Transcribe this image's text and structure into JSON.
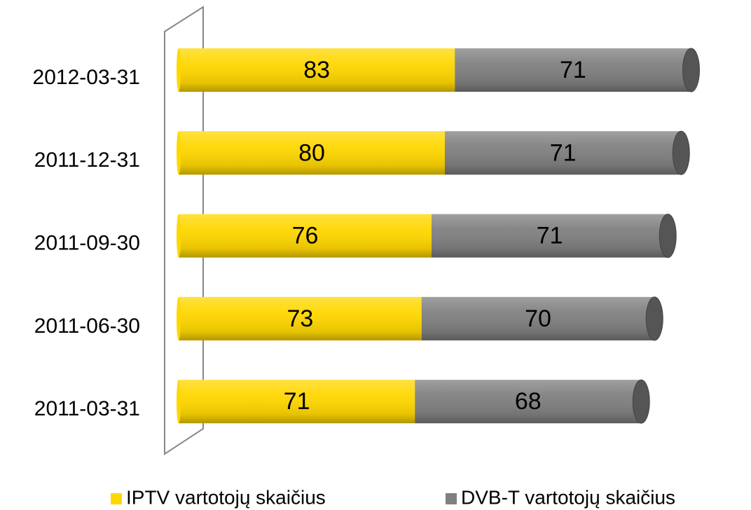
{
  "chart_data": {
    "type": "stacked-bar-horizontal",
    "categories": [
      "2011-03-31",
      "2011-06-30",
      "2011-09-30",
      "2011-12-31",
      "2012-03-31"
    ],
    "series": [
      {
        "name": "IPTV vartotojų skaičius",
        "color": "#ffd700",
        "values": [
          71,
          73,
          76,
          80,
          83
        ]
      },
      {
        "name": "DVB-T vartotojų skaičius",
        "color": "#808080",
        "values": [
          68,
          70,
          71,
          71,
          71
        ]
      }
    ],
    "legend": "bottom"
  }
}
